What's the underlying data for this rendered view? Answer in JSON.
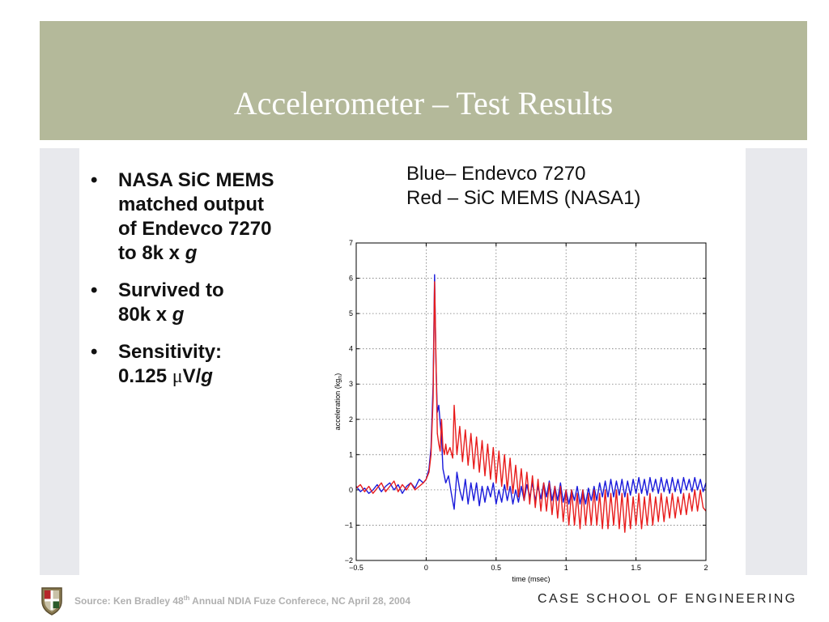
{
  "slide": {
    "title": "Accelerometer – Test Results",
    "bullets": [
      {
        "lines": [
          "NASA SiC MEMS",
          "matched output",
          "of Endevco 7270"
        ],
        "tail_pre": "to 8k x ",
        "tail_italic": "g",
        "tail_post": ""
      },
      {
        "lines": [
          "Survived to"
        ],
        "tail_pre": "80k x ",
        "tail_italic": "g",
        "tail_post": ""
      },
      {
        "lines": [
          "Sensitivity:"
        ],
        "tail_pre": "0.125 ",
        "tail_mu": "μ",
        "tail_mid": "V/",
        "tail_italic": "g",
        "tail_post": ""
      }
    ],
    "legend_lines": [
      "Blue– Endevco 7270",
      "Red – SiC MEMS (NASA1)"
    ],
    "footer": {
      "source_pre": "Source: Ken Bradley 48",
      "source_sup": "th",
      "source_post": " Annual NDIA Fuze Conferece, NC  April 28, 2004",
      "school": "CASE SCHOOL OF ENGINEERING"
    }
  },
  "colors": {
    "banner": "#b4b99a",
    "band": "#e8e9ed",
    "blue": "#1a1adb",
    "red": "#e81c1c"
  },
  "chart_data": {
    "type": "line",
    "xlabel": "time (msec)",
    "ylabel": "acceleration (kg",
    "ylabel_sub": "n",
    "ylabel_end": ")",
    "xlim": [
      -0.5,
      2
    ],
    "ylim": [
      -2,
      7
    ],
    "xticks": [
      -0.5,
      0,
      0.5,
      1,
      1.5,
      2
    ],
    "xtick_labels": [
      "−0.5",
      "0",
      "0.5",
      "1",
      "1.5",
      "2"
    ],
    "yticks": [
      -2,
      -1,
      0,
      1,
      2,
      3,
      4,
      5,
      6,
      7
    ],
    "ytick_labels": [
      "−2",
      "−1",
      "0",
      "1",
      "2",
      "3",
      "4",
      "5",
      "6",
      "7"
    ],
    "grid": true,
    "series": [
      {
        "color": "#1a1adb",
        "points": [
          [
            -0.5,
            0.1
          ],
          [
            -0.47,
            -0.05
          ],
          [
            -0.44,
            0.05
          ],
          [
            -0.41,
            -0.1
          ],
          [
            -0.38,
            0.0
          ],
          [
            -0.35,
            0.15
          ],
          [
            -0.32,
            -0.05
          ],
          [
            -0.29,
            0.1
          ],
          [
            -0.26,
            0.2
          ],
          [
            -0.23,
            0.0
          ],
          [
            -0.2,
            0.15
          ],
          [
            -0.17,
            -0.1
          ],
          [
            -0.14,
            0.1
          ],
          [
            -0.11,
            0.2
          ],
          [
            -0.08,
            0.05
          ],
          [
            -0.05,
            0.3
          ],
          [
            -0.02,
            0.2
          ],
          [
            0.0,
            0.3
          ],
          [
            0.02,
            0.6
          ],
          [
            0.035,
            1.2
          ],
          [
            0.05,
            3.0
          ],
          [
            0.06,
            6.1
          ],
          [
            0.07,
            3.6
          ],
          [
            0.08,
            2.2
          ],
          [
            0.09,
            2.4
          ],
          [
            0.1,
            1.9
          ],
          [
            0.11,
            1.5
          ],
          [
            0.12,
            0.6
          ],
          [
            0.14,
            0.2
          ],
          [
            0.16,
            0.4
          ],
          [
            0.18,
            -0.1
          ],
          [
            0.2,
            -0.55
          ],
          [
            0.22,
            0.5
          ],
          [
            0.24,
            0.0
          ],
          [
            0.26,
            -0.3
          ],
          [
            0.28,
            0.3
          ],
          [
            0.3,
            -0.4
          ],
          [
            0.32,
            0.2
          ],
          [
            0.34,
            -0.3
          ],
          [
            0.36,
            0.2
          ],
          [
            0.38,
            -0.45
          ],
          [
            0.4,
            0.1
          ],
          [
            0.42,
            -0.35
          ],
          [
            0.44,
            0.1
          ],
          [
            0.46,
            -0.2
          ],
          [
            0.48,
            0.2
          ],
          [
            0.5,
            -0.4
          ],
          [
            0.52,
            0.0
          ],
          [
            0.54,
            -0.35
          ],
          [
            0.56,
            0.15
          ],
          [
            0.58,
            -0.3
          ],
          [
            0.6,
            0.1
          ],
          [
            0.62,
            -0.4
          ],
          [
            0.64,
            0.0
          ],
          [
            0.66,
            -0.35
          ],
          [
            0.68,
            0.1
          ],
          [
            0.7,
            -0.3
          ],
          [
            0.72,
            0.15
          ],
          [
            0.74,
            -0.2
          ],
          [
            0.76,
            0.2
          ],
          [
            0.78,
            -0.3
          ],
          [
            0.8,
            0.1
          ],
          [
            0.82,
            -0.25
          ],
          [
            0.84,
            0.2
          ],
          [
            0.86,
            -0.2
          ],
          [
            0.88,
            0.25
          ],
          [
            0.9,
            -0.3
          ],
          [
            0.92,
            0.1
          ],
          [
            0.94,
            -0.3
          ],
          [
            0.96,
            0.2
          ],
          [
            0.98,
            -0.35
          ],
          [
            1.0,
            0.0
          ],
          [
            1.02,
            -0.4
          ],
          [
            1.04,
            0.0
          ],
          [
            1.06,
            -0.3
          ],
          [
            1.08,
            0.1
          ],
          [
            1.1,
            -0.4
          ],
          [
            1.12,
            0.0
          ],
          [
            1.14,
            -0.4
          ],
          [
            1.16,
            0.05
          ],
          [
            1.18,
            -0.3
          ],
          [
            1.2,
            0.1
          ],
          [
            1.22,
            -0.3
          ],
          [
            1.24,
            0.2
          ],
          [
            1.26,
            -0.2
          ],
          [
            1.28,
            0.25
          ],
          [
            1.3,
            -0.2
          ],
          [
            1.32,
            0.3
          ],
          [
            1.34,
            -0.2
          ],
          [
            1.36,
            0.25
          ],
          [
            1.38,
            -0.15
          ],
          [
            1.4,
            0.3
          ],
          [
            1.42,
            -0.2
          ],
          [
            1.44,
            0.25
          ],
          [
            1.46,
            -0.15
          ],
          [
            1.48,
            0.3
          ],
          [
            1.5,
            -0.1
          ],
          [
            1.52,
            0.35
          ],
          [
            1.54,
            -0.1
          ],
          [
            1.56,
            0.3
          ],
          [
            1.58,
            -0.15
          ],
          [
            1.6,
            0.35
          ],
          [
            1.62,
            -0.05
          ],
          [
            1.64,
            0.3
          ],
          [
            1.66,
            -0.1
          ],
          [
            1.68,
            0.35
          ],
          [
            1.7,
            -0.05
          ],
          [
            1.72,
            0.3
          ],
          [
            1.74,
            -0.1
          ],
          [
            1.76,
            0.35
          ],
          [
            1.78,
            -0.05
          ],
          [
            1.8,
            0.3
          ],
          [
            1.82,
            -0.1
          ],
          [
            1.84,
            0.35
          ],
          [
            1.86,
            0.0
          ],
          [
            1.88,
            0.3
          ],
          [
            1.9,
            -0.05
          ],
          [
            1.92,
            0.35
          ],
          [
            1.94,
            0.0
          ],
          [
            1.96,
            0.3
          ],
          [
            1.98,
            -0.05
          ],
          [
            2.0,
            0.2
          ]
        ]
      },
      {
        "color": "#e81c1c",
        "points": [
          [
            -0.5,
            0.05
          ],
          [
            -0.47,
            0.15
          ],
          [
            -0.44,
            -0.05
          ],
          [
            -0.41,
            0.1
          ],
          [
            -0.38,
            -0.1
          ],
          [
            -0.35,
            0.05
          ],
          [
            -0.32,
            0.2
          ],
          [
            -0.29,
            -0.05
          ],
          [
            -0.26,
            0.1
          ],
          [
            -0.23,
            0.25
          ],
          [
            -0.2,
            -0.05
          ],
          [
            -0.17,
            0.15
          ],
          [
            -0.14,
            0.0
          ],
          [
            -0.11,
            0.2
          ],
          [
            -0.08,
            0.0
          ],
          [
            -0.05,
            0.1
          ],
          [
            -0.02,
            0.2
          ],
          [
            0.0,
            0.3
          ],
          [
            0.02,
            0.5
          ],
          [
            0.035,
            1.0
          ],
          [
            0.05,
            2.6
          ],
          [
            0.06,
            5.9
          ],
          [
            0.07,
            3.8
          ],
          [
            0.08,
            1.6
          ],
          [
            0.09,
            1.3
          ],
          [
            0.1,
            1.1
          ],
          [
            0.11,
            2.0
          ],
          [
            0.12,
            1.2
          ],
          [
            0.13,
            1.0
          ],
          [
            0.14,
            1.3
          ],
          [
            0.15,
            1.0
          ],
          [
            0.17,
            1.2
          ],
          [
            0.19,
            0.9
          ],
          [
            0.2,
            2.4
          ],
          [
            0.22,
            1.0
          ],
          [
            0.24,
            1.8
          ],
          [
            0.26,
            0.8
          ],
          [
            0.28,
            1.7
          ],
          [
            0.3,
            0.7
          ],
          [
            0.32,
            1.6
          ],
          [
            0.34,
            0.6
          ],
          [
            0.36,
            1.5
          ],
          [
            0.38,
            0.5
          ],
          [
            0.4,
            1.4
          ],
          [
            0.42,
            0.4
          ],
          [
            0.44,
            1.3
          ],
          [
            0.46,
            0.3
          ],
          [
            0.48,
            1.2
          ],
          [
            0.5,
            0.2
          ],
          [
            0.52,
            1.1
          ],
          [
            0.54,
            0.1
          ],
          [
            0.56,
            1.0
          ],
          [
            0.58,
            0.0
          ],
          [
            0.6,
            0.9
          ],
          [
            0.62,
            -0.1
          ],
          [
            0.64,
            0.7
          ],
          [
            0.66,
            -0.2
          ],
          [
            0.68,
            0.6
          ],
          [
            0.7,
            -0.3
          ],
          [
            0.72,
            0.5
          ],
          [
            0.74,
            -0.4
          ],
          [
            0.76,
            0.4
          ],
          [
            0.78,
            -0.5
          ],
          [
            0.8,
            0.3
          ],
          [
            0.82,
            -0.6
          ],
          [
            0.84,
            0.2
          ],
          [
            0.86,
            -0.6
          ],
          [
            0.88,
            0.2
          ],
          [
            0.9,
            -0.7
          ],
          [
            0.92,
            0.1
          ],
          [
            0.94,
            -0.8
          ],
          [
            0.96,
            0.1
          ],
          [
            0.98,
            -0.9
          ],
          [
            1.0,
            0.0
          ],
          [
            1.02,
            -1.0
          ],
          [
            1.04,
            0.0
          ],
          [
            1.06,
            -1.0
          ],
          [
            1.08,
            -0.1
          ],
          [
            1.1,
            -1.1
          ],
          [
            1.12,
            0.0
          ],
          [
            1.14,
            -1.0
          ],
          [
            1.16,
            -0.1
          ],
          [
            1.18,
            -1.0
          ],
          [
            1.2,
            0.0
          ],
          [
            1.22,
            -1.0
          ],
          [
            1.24,
            -0.1
          ],
          [
            1.26,
            -1.1
          ],
          [
            1.28,
            0.0
          ],
          [
            1.3,
            -1.1
          ],
          [
            1.32,
            -0.1
          ],
          [
            1.34,
            -1.0
          ],
          [
            1.36,
            0.0
          ],
          [
            1.38,
            -1.1
          ],
          [
            1.4,
            -0.1
          ],
          [
            1.42,
            -1.2
          ],
          [
            1.44,
            -0.1
          ],
          [
            1.46,
            -1.1
          ],
          [
            1.48,
            -0.2
          ],
          [
            1.5,
            -1.0
          ],
          [
            1.52,
            -0.1
          ],
          [
            1.54,
            -1.1
          ],
          [
            1.56,
            -0.2
          ],
          [
            1.58,
            -1.0
          ],
          [
            1.6,
            -0.1
          ],
          [
            1.62,
            -1.0
          ],
          [
            1.64,
            -0.2
          ],
          [
            1.66,
            -0.9
          ],
          [
            1.68,
            -0.1
          ],
          [
            1.7,
            -0.9
          ],
          [
            1.72,
            -0.2
          ],
          [
            1.74,
            -0.8
          ],
          [
            1.76,
            -0.1
          ],
          [
            1.78,
            -0.8
          ],
          [
            1.8,
            -0.2
          ],
          [
            1.82,
            -0.7
          ],
          [
            1.84,
            -0.1
          ],
          [
            1.86,
            -0.7
          ],
          [
            1.88,
            -0.1
          ],
          [
            1.9,
            -0.6
          ],
          [
            1.92,
            0.0
          ],
          [
            1.94,
            -0.6
          ],
          [
            1.96,
            0.0
          ],
          [
            1.98,
            -0.5
          ],
          [
            2.0,
            -0.6
          ]
        ]
      }
    ]
  }
}
